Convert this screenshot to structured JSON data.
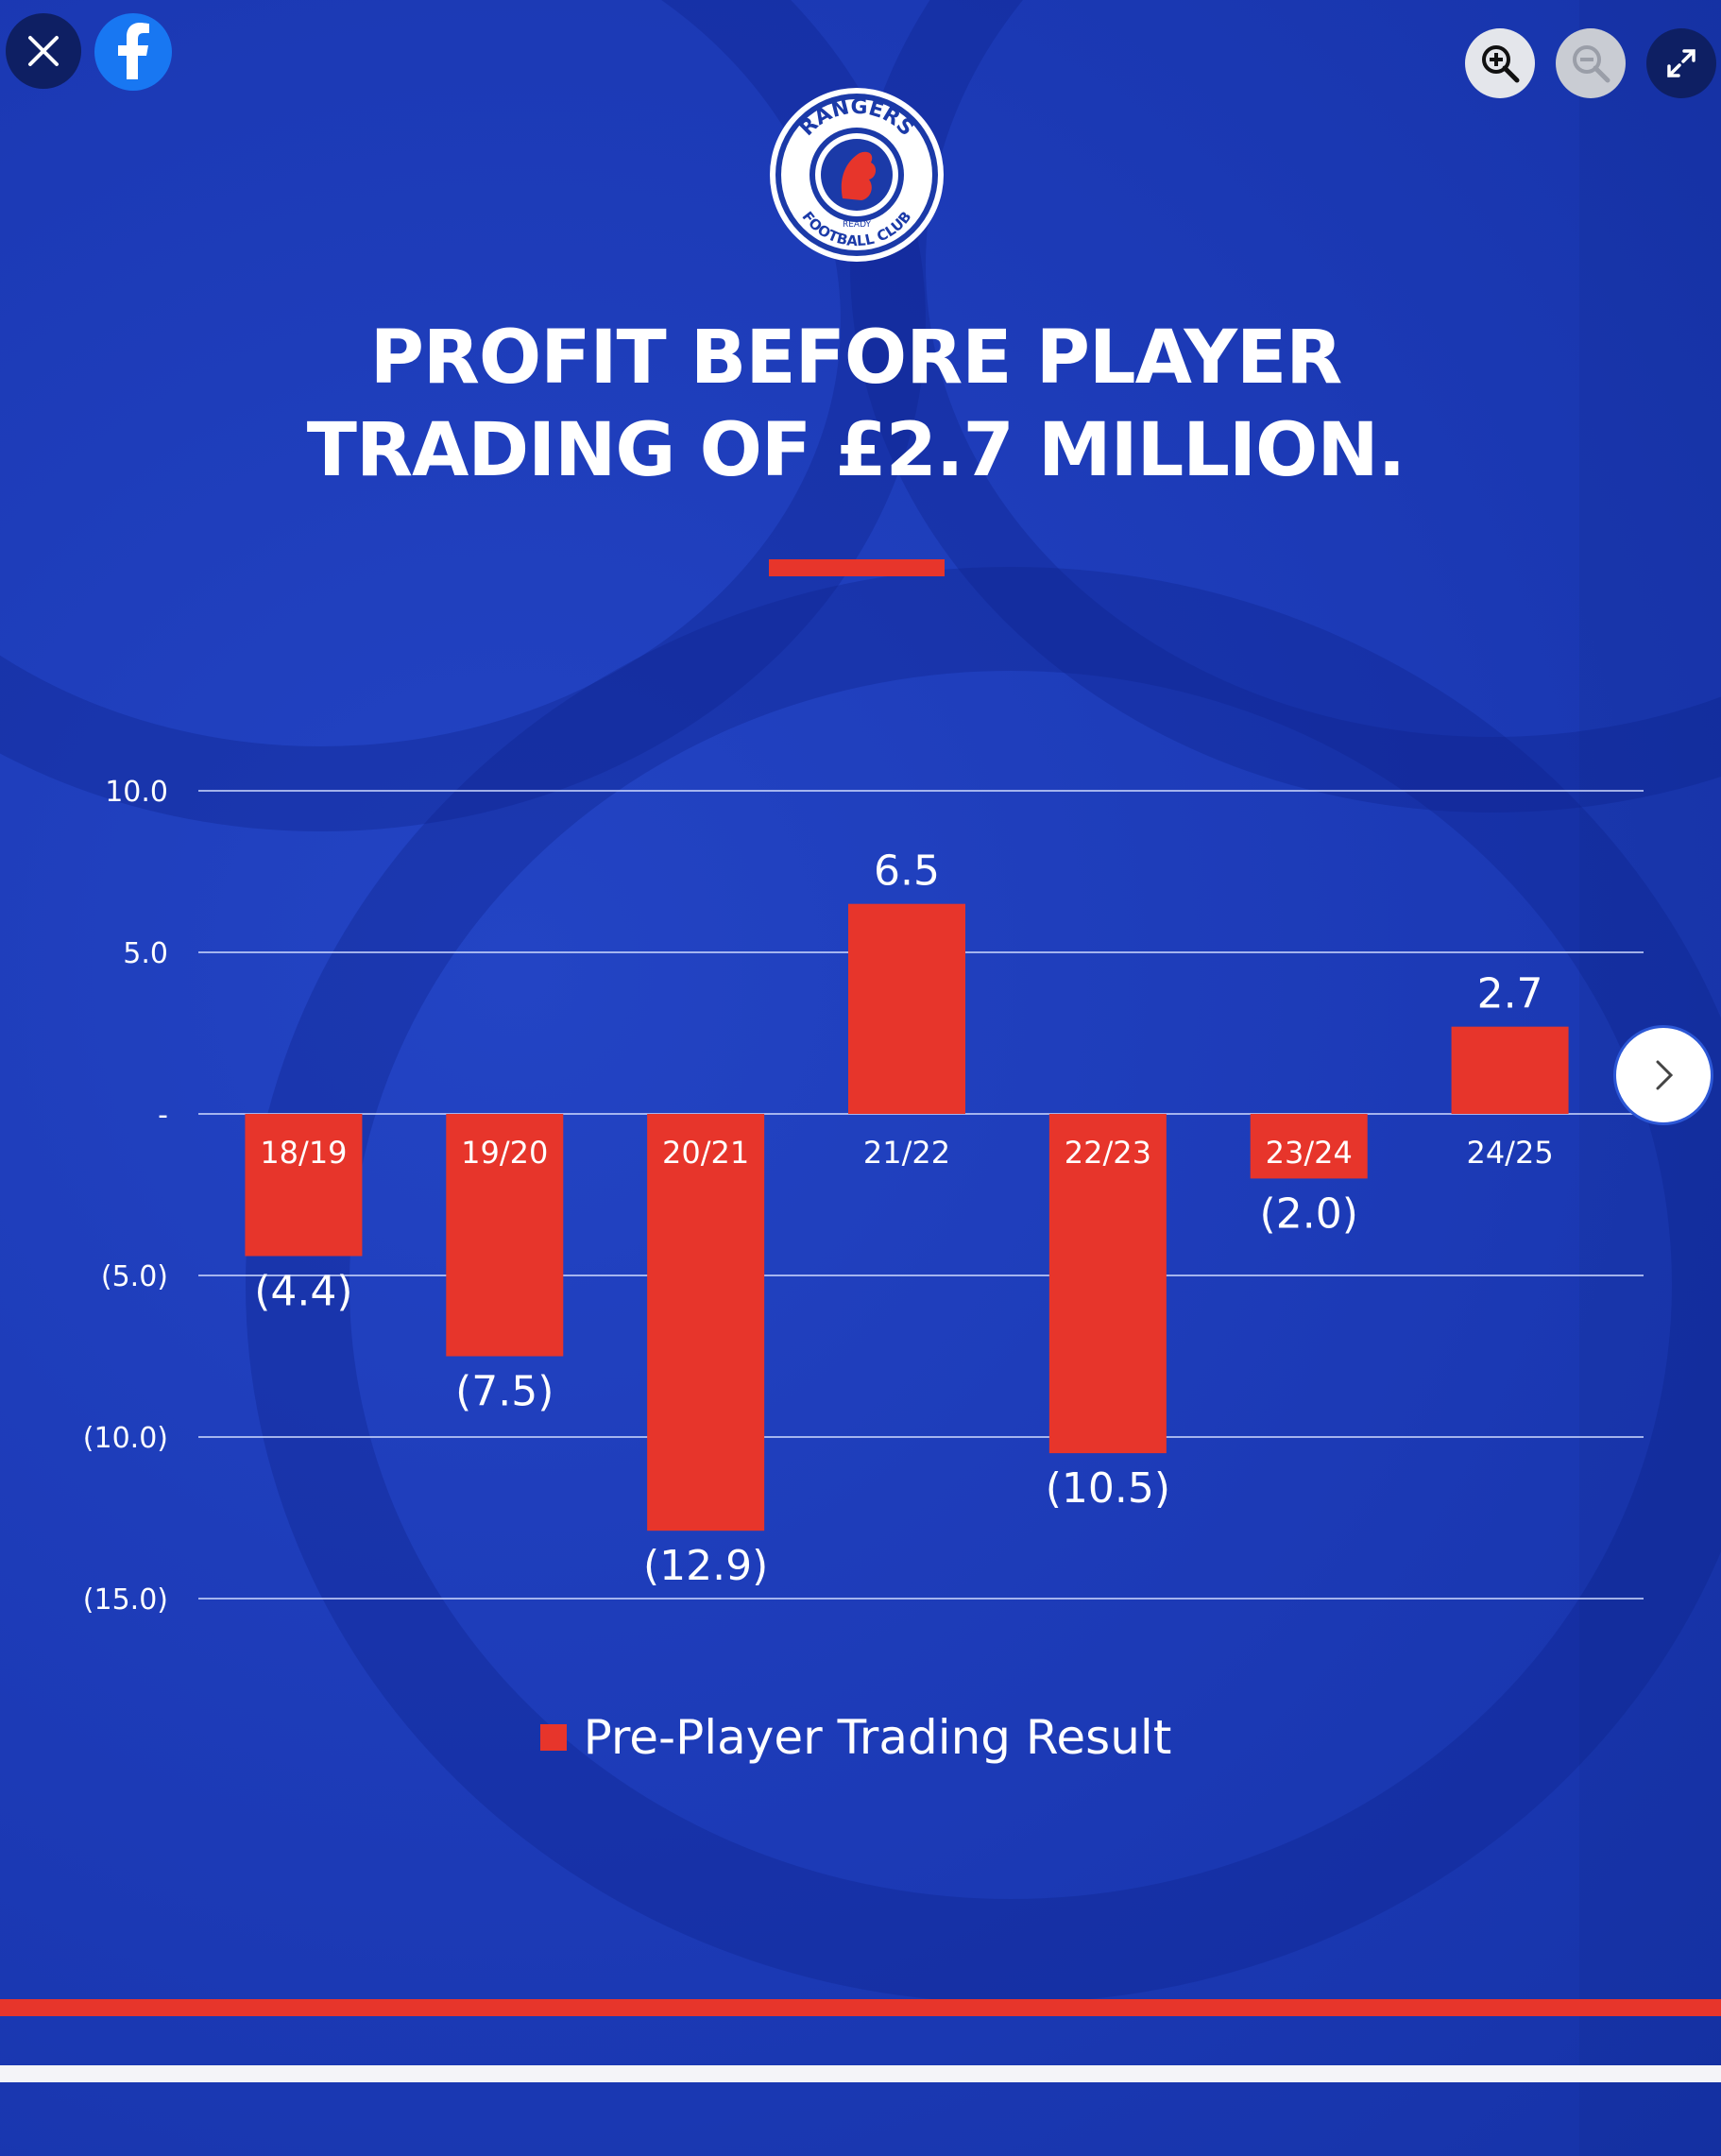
{
  "viewer": {
    "controls": {
      "close": "close-icon",
      "facebook": "facebook-icon",
      "zoom_in": "zoom-in-icon",
      "zoom_out": "zoom-out-icon",
      "fullscreen": "fullscreen-icon",
      "next": "chevron-right-icon"
    },
    "colors": {
      "background": "#1d3db8",
      "accent": "#e7352b",
      "text": "#ffffff"
    }
  },
  "logo": {
    "top_text": "RANGERS",
    "bottom_text": "FOOTBALL CLUB",
    "motto": "READY"
  },
  "post": {
    "title_line1": "PROFIT BEFORE PLAYER",
    "title_line2": "TRADING OF £2.7 MILLION."
  },
  "chart_data": {
    "type": "bar",
    "categories": [
      "18/19",
      "19/20",
      "20/21",
      "21/22",
      "22/23",
      "23/24",
      "24/25"
    ],
    "series": [
      {
        "name": "Pre-Player Trading Result",
        "values": [
          -4.4,
          -7.5,
          -12.9,
          6.5,
          -10.5,
          -2.0,
          2.7
        ],
        "data_labels": [
          "(4.4)",
          "(7.5)",
          "(12.9)",
          "6.5",
          "(10.5)",
          "(2.0)",
          "2.7"
        ]
      }
    ],
    "y_ticks": [
      10,
      5,
      0,
      -5,
      -10,
      -15
    ],
    "y_tick_labels": [
      "10.0",
      "5.0",
      "-",
      "(5.0)",
      "(10.0)",
      "(15.0)"
    ],
    "ylim": [
      -15,
      10
    ],
    "grid": true,
    "legend": "bottom-center",
    "bar_color": "#e7352b"
  }
}
